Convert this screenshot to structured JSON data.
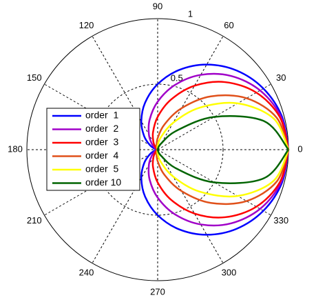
{
  "chart_data": {
    "type": "polar",
    "theta": [
      0,
      15,
      30,
      45,
      60,
      75,
      90,
      105,
      120,
      135,
      150,
      165,
      180,
      195,
      210,
      225,
      240,
      255,
      270,
      285,
      300,
      315,
      330,
      345,
      360
    ],
    "series": [
      {
        "name": "order  1",
        "color": "#0000ff",
        "values": [
          1,
          0.983,
          0.933,
          0.854,
          0.75,
          0.629,
          0.5,
          0.371,
          0.25,
          0.146,
          0.067,
          0.017,
          0,
          0.017,
          0.067,
          0.146,
          0.25,
          0.371,
          0.5,
          0.629,
          0.75,
          0.854,
          0.933,
          0.983,
          1
        ]
      },
      {
        "name": "order  2",
        "color": "#a000c8",
        "values": [
          1,
          0.975,
          0.904,
          0.795,
          0.659,
          0.511,
          0.366,
          0.237,
          0.134,
          0.062,
          0.02,
          0.003,
          0,
          0.003,
          0.02,
          0.062,
          0.134,
          0.237,
          0.366,
          0.511,
          0.659,
          0.795,
          0.904,
          0.975,
          1
        ]
      },
      {
        "name": "order  3",
        "color": "#ff0000",
        "values": [
          1,
          0.966,
          0.871,
          0.729,
          0.563,
          0.396,
          0.25,
          0.137,
          0.063,
          0.021,
          0.004,
          0,
          0,
          0,
          0.004,
          0.021,
          0.063,
          0.137,
          0.25,
          0.396,
          0.563,
          0.729,
          0.871,
          0.966,
          1
        ]
      },
      {
        "name": "order  4",
        "color": "#e0501a",
        "values": [
          1,
          0.942,
          0.785,
          0.575,
          0.365,
          0.198,
          0.088,
          0.031,
          0.008,
          0.001,
          0,
          0,
          0,
          0,
          0,
          0.001,
          0.008,
          0.031,
          0.088,
          0.198,
          0.365,
          0.575,
          0.785,
          0.942,
          1
        ]
      },
      {
        "name": "order  5",
        "color": "#ffff00",
        "values": [
          1,
          0.918,
          0.707,
          0.453,
          0.237,
          0.099,
          0.031,
          0.007,
          0.001,
          0,
          0,
          0,
          0,
          0,
          0,
          0,
          0.001,
          0.007,
          0.031,
          0.099,
          0.237,
          0.453,
          0.707,
          0.918,
          1
        ]
      },
      {
        "name": "order 10",
        "color": "#006400",
        "values": [
          1,
          0.842,
          0.5,
          0.205,
          0.056,
          0.01,
          0.001,
          0,
          0,
          0,
          0,
          0,
          0,
          0,
          0,
          0,
          0,
          0,
          0.001,
          0.01,
          0.056,
          0.205,
          0.5,
          0.842,
          1
        ]
      }
    ],
    "rlim": [
      0,
      1
    ],
    "rticks": [
      0.5,
      1
    ],
    "thetaticks": [
      0,
      30,
      60,
      90,
      120,
      150,
      180,
      210,
      240,
      270,
      300,
      330
    ],
    "grid": true,
    "legend": "left"
  }
}
